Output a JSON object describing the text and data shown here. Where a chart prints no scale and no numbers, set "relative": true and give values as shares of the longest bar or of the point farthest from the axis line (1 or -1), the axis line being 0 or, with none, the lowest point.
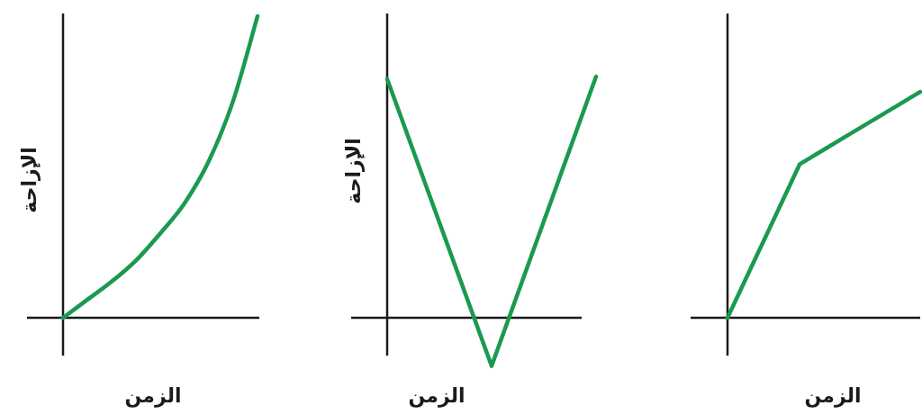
{
  "chart_data": [
    {
      "type": "line",
      "relative": true,
      "xlabel": "الزمن",
      "ylabel": "الإزاحة",
      "categories": [
        null,
        null,
        null,
        null,
        null,
        null,
        null,
        null,
        null
      ],
      "series": [
        {
          "color": "#1a9a50",
          "values": [
            0,
            0.06,
            0.12,
            0.19,
            0.28,
            0.38,
            0.52,
            0.72,
            1
          ]
        }
      ]
    },
    {
      "type": "line",
      "relative": true,
      "xlabel": "الزمن",
      "ylabel": "الإزاحة",
      "categories": [
        null,
        null,
        null
      ],
      "series": [
        {
          "color": "#1a9a50",
          "values": [
            0.99,
            -0.2,
            1
          ]
        }
      ]
    },
    {
      "type": "line",
      "relative": true,
      "xlabel": "الزمن",
      "categories": [
        null,
        null,
        null,
        null,
        null,
        null,
        null,
        null,
        null
      ],
      "series": [
        {
          "color": "#1a9a50",
          "values": [
            0,
            0.227,
            0.453,
            0.68,
            0.744,
            0.808,
            0.872,
            0.936,
            1
          ]
        }
      ]
    }
  ]
}
